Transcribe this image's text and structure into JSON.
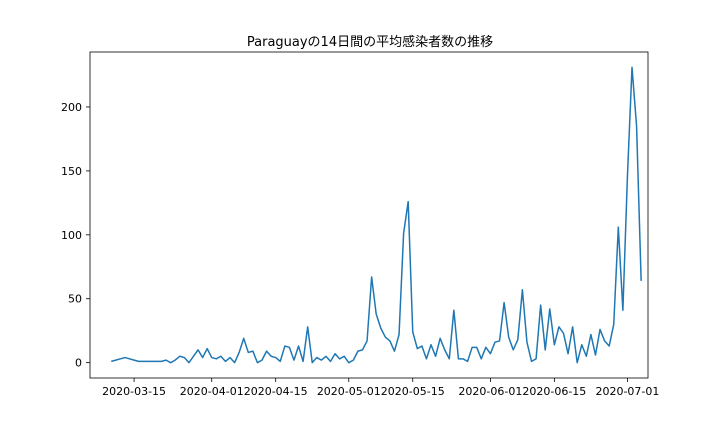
{
  "chart_data": {
    "type": "line",
    "title": "Paraguayの14日間の平均感染者数の推移",
    "xlabel": "",
    "ylabel": "",
    "grid": false,
    "x_start": "2020-03-10",
    "x_ticks": [
      "2020-03-15",
      "2020-04-01",
      "2020-04-15",
      "2020-05-01",
      "2020-05-15",
      "2020-06-01",
      "2020-06-15",
      "2020-07-01"
    ],
    "y_ticks": [
      0,
      50,
      100,
      150,
      200
    ],
    "xlim": [
      "2020-03-05",
      "2020-07-03"
    ],
    "ylim": [
      -12,
      243
    ],
    "series": [
      {
        "color": "#1f77b4",
        "points": [
          [
            "2020-03-10",
            1
          ],
          [
            "2020-03-11",
            2
          ],
          [
            "2020-03-12",
            3
          ],
          [
            "2020-03-13",
            4
          ],
          [
            "2020-03-14",
            3
          ],
          [
            "2020-03-15",
            2
          ],
          [
            "2020-03-16",
            1
          ],
          [
            "2020-03-17",
            1
          ],
          [
            "2020-03-18",
            1
          ],
          [
            "2020-03-19",
            1
          ],
          [
            "2020-03-20",
            1
          ],
          [
            "2020-03-21",
            1
          ],
          [
            "2020-03-22",
            2
          ],
          [
            "2020-03-23",
            0
          ],
          [
            "2020-03-24",
            2
          ],
          [
            "2020-03-25",
            5
          ],
          [
            "2020-03-26",
            4
          ],
          [
            "2020-03-27",
            0
          ],
          [
            "2020-03-28",
            5
          ],
          [
            "2020-03-29",
            10
          ],
          [
            "2020-03-30",
            4
          ],
          [
            "2020-03-31",
            11
          ],
          [
            "2020-04-01",
            4
          ],
          [
            "2020-04-02",
            3
          ],
          [
            "2020-04-03",
            5
          ],
          [
            "2020-04-04",
            1
          ],
          [
            "2020-04-05",
            4
          ],
          [
            "2020-04-06",
            0
          ],
          [
            "2020-04-07",
            8
          ],
          [
            "2020-04-08",
            19
          ],
          [
            "2020-04-09",
            8
          ],
          [
            "2020-04-10",
            9
          ],
          [
            "2020-04-11",
            0
          ],
          [
            "2020-04-12",
            2
          ],
          [
            "2020-04-13",
            9
          ],
          [
            "2020-04-14",
            5
          ],
          [
            "2020-04-15",
            4
          ],
          [
            "2020-04-16",
            1
          ],
          [
            "2020-04-17",
            13
          ],
          [
            "2020-04-18",
            12
          ],
          [
            "2020-04-19",
            2
          ],
          [
            "2020-04-20",
            13
          ],
          [
            "2020-04-21",
            1
          ],
          [
            "2020-04-22",
            28
          ],
          [
            "2020-04-23",
            0
          ],
          [
            "2020-04-24",
            4
          ],
          [
            "2020-04-25",
            2
          ],
          [
            "2020-04-26",
            5
          ],
          [
            "2020-04-27",
            1
          ],
          [
            "2020-04-28",
            7
          ],
          [
            "2020-04-29",
            3
          ],
          [
            "2020-04-30",
            5
          ],
          [
            "2020-05-01",
            0
          ],
          [
            "2020-05-02",
            2
          ],
          [
            "2020-05-03",
            9
          ],
          [
            "2020-05-04",
            10
          ],
          [
            "2020-05-05",
            17
          ],
          [
            "2020-05-06",
            67
          ],
          [
            "2020-05-07",
            38
          ],
          [
            "2020-05-08",
            27
          ],
          [
            "2020-05-09",
            20
          ],
          [
            "2020-05-10",
            17
          ],
          [
            "2020-05-11",
            9
          ],
          [
            "2020-05-12",
            22
          ],
          [
            "2020-05-13",
            101
          ],
          [
            "2020-05-14",
            126
          ],
          [
            "2020-05-15",
            24
          ],
          [
            "2020-05-16",
            11
          ],
          [
            "2020-05-17",
            13
          ],
          [
            "2020-05-18",
            3
          ],
          [
            "2020-05-19",
            14
          ],
          [
            "2020-05-20",
            5
          ],
          [
            "2020-05-21",
            19
          ],
          [
            "2020-05-22",
            10
          ],
          [
            "2020-05-23",
            3
          ],
          [
            "2020-05-24",
            41
          ],
          [
            "2020-05-25",
            3
          ],
          [
            "2020-05-26",
            3
          ],
          [
            "2020-05-27",
            1
          ],
          [
            "2020-05-28",
            12
          ],
          [
            "2020-05-29",
            12
          ],
          [
            "2020-05-30",
            3
          ],
          [
            "2020-05-31",
            12
          ],
          [
            "2020-06-01",
            7
          ],
          [
            "2020-06-02",
            16
          ],
          [
            "2020-06-03",
            17
          ],
          [
            "2020-06-04",
            47
          ],
          [
            "2020-06-05",
            20
          ],
          [
            "2020-06-06",
            10
          ],
          [
            "2020-06-07",
            18
          ],
          [
            "2020-06-08",
            57
          ],
          [
            "2020-06-09",
            16
          ],
          [
            "2020-06-10",
            1
          ],
          [
            "2020-06-11",
            3
          ],
          [
            "2020-06-12",
            45
          ],
          [
            "2020-06-13",
            10
          ],
          [
            "2020-06-14",
            42
          ],
          [
            "2020-06-15",
            14
          ],
          [
            "2020-06-16",
            28
          ],
          [
            "2020-06-17",
            23
          ],
          [
            "2020-06-18",
            7
          ],
          [
            "2020-06-19",
            28
          ],
          [
            "2020-06-20",
            0
          ],
          [
            "2020-06-21",
            14
          ],
          [
            "2020-06-22",
            5
          ],
          [
            "2020-06-23",
            22
          ],
          [
            "2020-06-24",
            6
          ],
          [
            "2020-06-25",
            26
          ],
          [
            "2020-06-26",
            17
          ],
          [
            "2020-06-27",
            13
          ],
          [
            "2020-06-28",
            30
          ],
          [
            "2020-06-29",
            106
          ],
          [
            "2020-06-30",
            41
          ],
          [
            "2020-07-01",
            146
          ],
          [
            "2020-07-02",
            231
          ],
          [
            "2020-07-03",
            185
          ],
          [
            "2020-07-04",
            64
          ]
        ]
      }
    ]
  }
}
